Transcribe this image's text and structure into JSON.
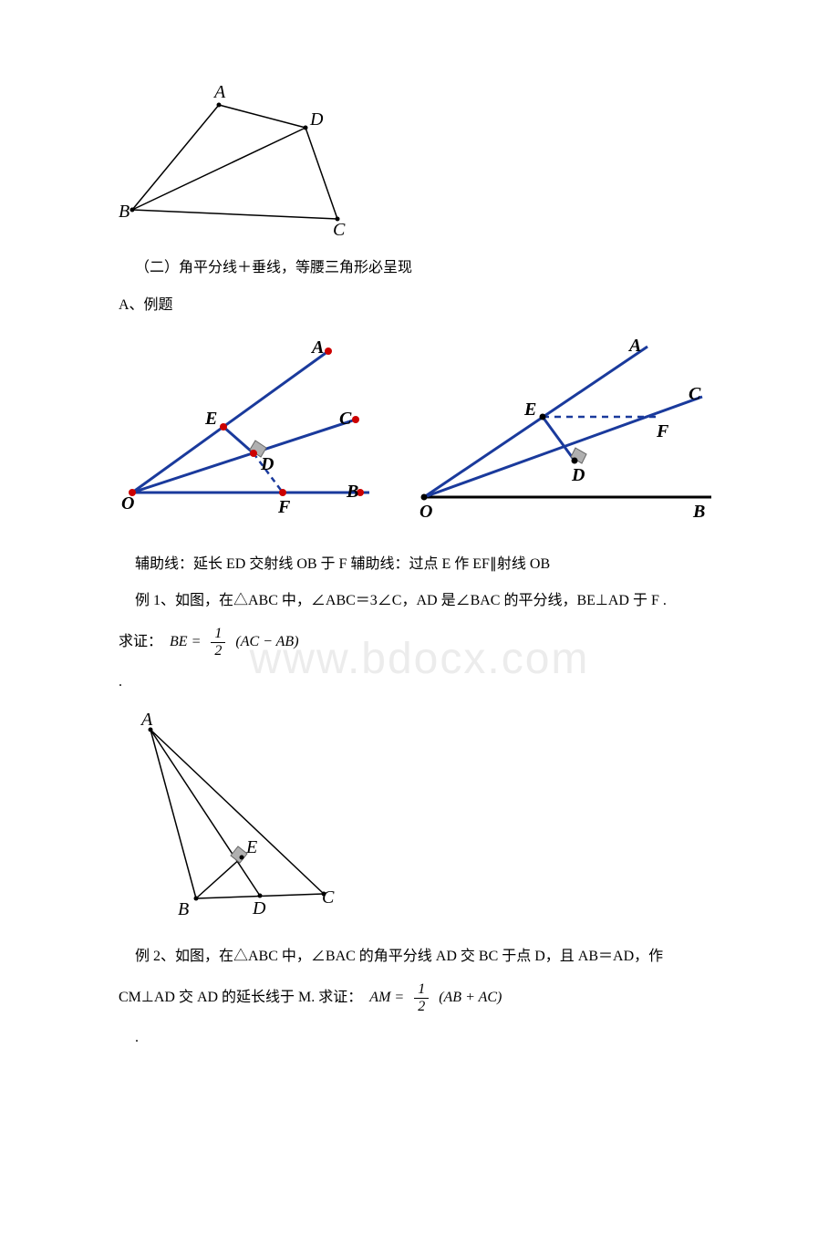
{
  "watermark": "www.bdocx.com",
  "section2_title": "（二）角平分线＋垂线，等腰三角形必呈现",
  "sub_A": "A、例题",
  "aux_text": "辅助线：延长 ED 交射线 OB 于 F 辅助线：过点 E 作 EF∥射线 OB",
  "ex1_line": "例 1、如图，在△ABC 中，∠ABC＝3∠C，AD 是∠BAC 的平分线，BE⊥AD 于 F .",
  "ex1_prove_label": "求证：",
  "ex1_formula_left": "BE =",
  "ex1_frac_num": "1",
  "ex1_frac_den": "2",
  "ex1_formula_right": "(AC − AB)",
  "dot": ".",
  "ex2_line1": "例 2、如图，在△ABC 中，∠BAC 的角平分线 AD 交 BC 于点 D，且 AB＝AD，作",
  "ex2_line2_left": "CM⊥AD 交 AD 的延长线于 M. 求证：",
  "ex2_formula_left": "AM =",
  "ex2_frac_num": "1",
  "ex2_frac_den": "2",
  "ex2_formula_right": "(AB + AC)",
  "fig1": {
    "labels": {
      "A": "A",
      "B": "B",
      "C": "C",
      "D": "D"
    },
    "font": "italic 20px 'Times New Roman'",
    "stroke": "#000000"
  },
  "fig2": {
    "labels": {
      "O": "O",
      "A": "A",
      "B": "B",
      "C": "C",
      "D": "D",
      "E": "E",
      "F": "F"
    },
    "blue": "#1a3a9c",
    "red": "#cc0000",
    "gray": "#b0b0b0",
    "black": "#000000",
    "font": "bold italic 20px 'Times New Roman'"
  },
  "fig3": {
    "labels": {
      "O": "O",
      "A": "A",
      "B": "B",
      "C": "C",
      "D": "D",
      "E": "E",
      "F": "F"
    },
    "blue": "#1a3a9c",
    "black": "#000000",
    "gray": "#b0b0b0",
    "font": "bold italic 20px 'Times New Roman'"
  },
  "fig4": {
    "labels": {
      "A": "A",
      "B": "B",
      "C": "C",
      "D": "D",
      "E": "E"
    },
    "font": "italic 20px 'Times New Roman'",
    "stroke": "#000000",
    "gray": "#b0b0b0"
  }
}
